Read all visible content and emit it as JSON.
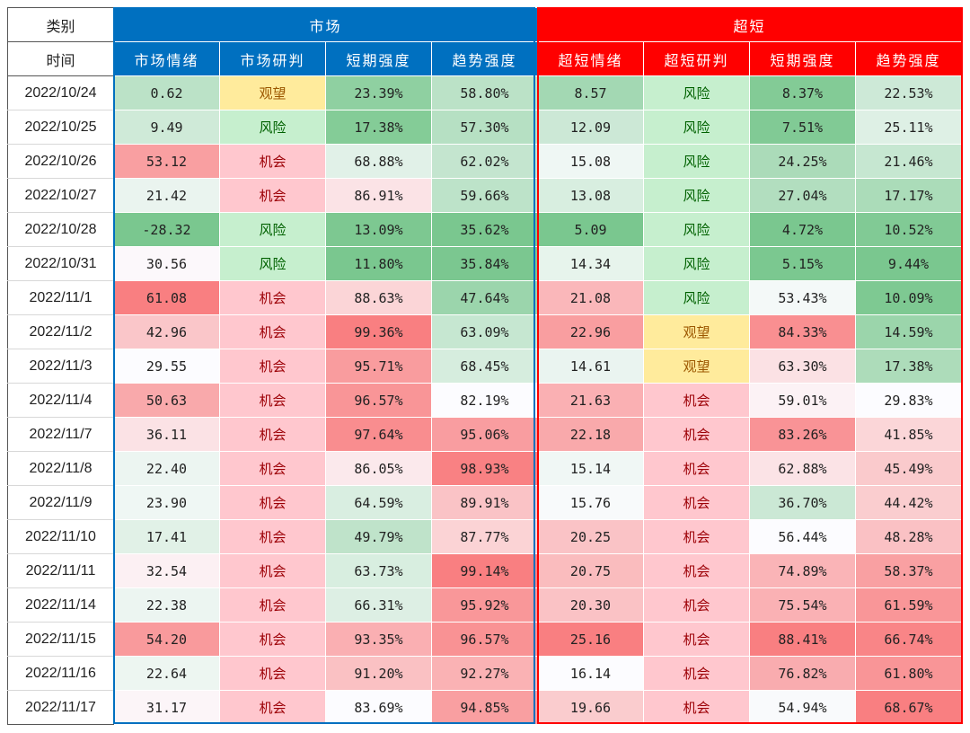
{
  "header": {
    "category_label": "类别",
    "time_label": "时间",
    "market_group": "市场",
    "ultra_group": "超短",
    "market_columns": [
      "市场情绪",
      "市场研判",
      "短期强度",
      "趋势强度"
    ],
    "ultra_columns": [
      "超短情绪",
      "超短研判",
      "短期强度",
      "趋势强度"
    ]
  },
  "colors": {
    "market_accent": "#0070c0",
    "ultra_accent": "#ff0000",
    "risk_bg": "#c6efce",
    "opportunity_bg": "#ffc7ce",
    "watch_bg": "#ffeb9c"
  },
  "rows": [
    {
      "date": "2022/10/24",
      "m_sent": "0.62",
      "m_judge": "观望",
      "m_short": "23.39%",
      "m_trend": "58.80%",
      "u_sent": "8.57",
      "u_judge": "风险",
      "u_short": "8.37%",
      "u_trend": "22.53%"
    },
    {
      "date": "2022/10/25",
      "m_sent": "9.49",
      "m_judge": "风险",
      "m_short": "17.38%",
      "m_trend": "57.30%",
      "u_sent": "12.09",
      "u_judge": "风险",
      "u_short": "7.51%",
      "u_trend": "25.11%"
    },
    {
      "date": "2022/10/26",
      "m_sent": "53.12",
      "m_judge": "机会",
      "m_short": "68.88%",
      "m_trend": "62.02%",
      "u_sent": "15.08",
      "u_judge": "风险",
      "u_short": "24.25%",
      "u_trend": "21.46%"
    },
    {
      "date": "2022/10/27",
      "m_sent": "21.42",
      "m_judge": "机会",
      "m_short": "86.91%",
      "m_trend": "59.66%",
      "u_sent": "13.08",
      "u_judge": "风险",
      "u_short": "27.04%",
      "u_trend": "17.17%"
    },
    {
      "date": "2022/10/28",
      "m_sent": "-28.32",
      "m_judge": "风险",
      "m_short": "13.09%",
      "m_trend": "35.62%",
      "u_sent": "5.09",
      "u_judge": "风险",
      "u_short": "4.72%",
      "u_trend": "10.52%"
    },
    {
      "date": "2022/10/31",
      "m_sent": "30.56",
      "m_judge": "风险",
      "m_short": "11.80%",
      "m_trend": "35.84%",
      "u_sent": "14.34",
      "u_judge": "风险",
      "u_short": "5.15%",
      "u_trend": "9.44%"
    },
    {
      "date": "2022/11/1",
      "m_sent": "61.08",
      "m_judge": "机会",
      "m_short": "88.63%",
      "m_trend": "47.64%",
      "u_sent": "21.08",
      "u_judge": "风险",
      "u_short": "53.43%",
      "u_trend": "10.09%"
    },
    {
      "date": "2022/11/2",
      "m_sent": "42.96",
      "m_judge": "机会",
      "m_short": "99.36%",
      "m_trend": "63.09%",
      "u_sent": "22.96",
      "u_judge": "观望",
      "u_short": "84.33%",
      "u_trend": "14.59%"
    },
    {
      "date": "2022/11/3",
      "m_sent": "29.55",
      "m_judge": "机会",
      "m_short": "95.71%",
      "m_trend": "68.45%",
      "u_sent": "14.61",
      "u_judge": "观望",
      "u_short": "63.30%",
      "u_trend": "17.38%"
    },
    {
      "date": "2022/11/4",
      "m_sent": "50.63",
      "m_judge": "机会",
      "m_short": "96.57%",
      "m_trend": "82.19%",
      "u_sent": "21.63",
      "u_judge": "机会",
      "u_short": "59.01%",
      "u_trend": "29.83%"
    },
    {
      "date": "2022/11/7",
      "m_sent": "36.11",
      "m_judge": "机会",
      "m_short": "97.64%",
      "m_trend": "95.06%",
      "u_sent": "22.18",
      "u_judge": "机会",
      "u_short": "83.26%",
      "u_trend": "41.85%"
    },
    {
      "date": "2022/11/8",
      "m_sent": "22.40",
      "m_judge": "机会",
      "m_short": "86.05%",
      "m_trend": "98.93%",
      "u_sent": "15.14",
      "u_judge": "机会",
      "u_short": "62.88%",
      "u_trend": "45.49%"
    },
    {
      "date": "2022/11/9",
      "m_sent": "23.90",
      "m_judge": "机会",
      "m_short": "64.59%",
      "m_trend": "89.91%",
      "u_sent": "15.76",
      "u_judge": "机会",
      "u_short": "36.70%",
      "u_trend": "44.42%"
    },
    {
      "date": "2022/11/10",
      "m_sent": "17.41",
      "m_judge": "机会",
      "m_short": "49.79%",
      "m_trend": "87.77%",
      "u_sent": "20.25",
      "u_judge": "机会",
      "u_short": "56.44%",
      "u_trend": "48.28%"
    },
    {
      "date": "2022/11/11",
      "m_sent": "32.54",
      "m_judge": "机会",
      "m_short": "63.73%",
      "m_trend": "99.14%",
      "u_sent": "20.75",
      "u_judge": "机会",
      "u_short": "74.89%",
      "u_trend": "58.37%"
    },
    {
      "date": "2022/11/14",
      "m_sent": "22.38",
      "m_judge": "机会",
      "m_short": "66.31%",
      "m_trend": "95.92%",
      "u_sent": "20.30",
      "u_judge": "机会",
      "u_short": "75.54%",
      "u_trend": "61.59%"
    },
    {
      "date": "2022/11/15",
      "m_sent": "54.20",
      "m_judge": "机会",
      "m_short": "93.35%",
      "m_trend": "96.57%",
      "u_sent": "25.16",
      "u_judge": "机会",
      "u_short": "88.41%",
      "u_trend": "66.74%"
    },
    {
      "date": "2022/11/16",
      "m_sent": "22.64",
      "m_judge": "机会",
      "m_short": "91.20%",
      "m_trend": "92.27%",
      "u_sent": "16.14",
      "u_judge": "机会",
      "u_short": "76.82%",
      "u_trend": "61.80%"
    },
    {
      "date": "2022/11/17",
      "m_sent": "31.17",
      "m_judge": "机会",
      "m_short": "83.69%",
      "m_trend": "94.85%",
      "u_sent": "19.66",
      "u_judge": "机会",
      "u_short": "54.94%",
      "u_trend": "68.67%"
    }
  ]
}
